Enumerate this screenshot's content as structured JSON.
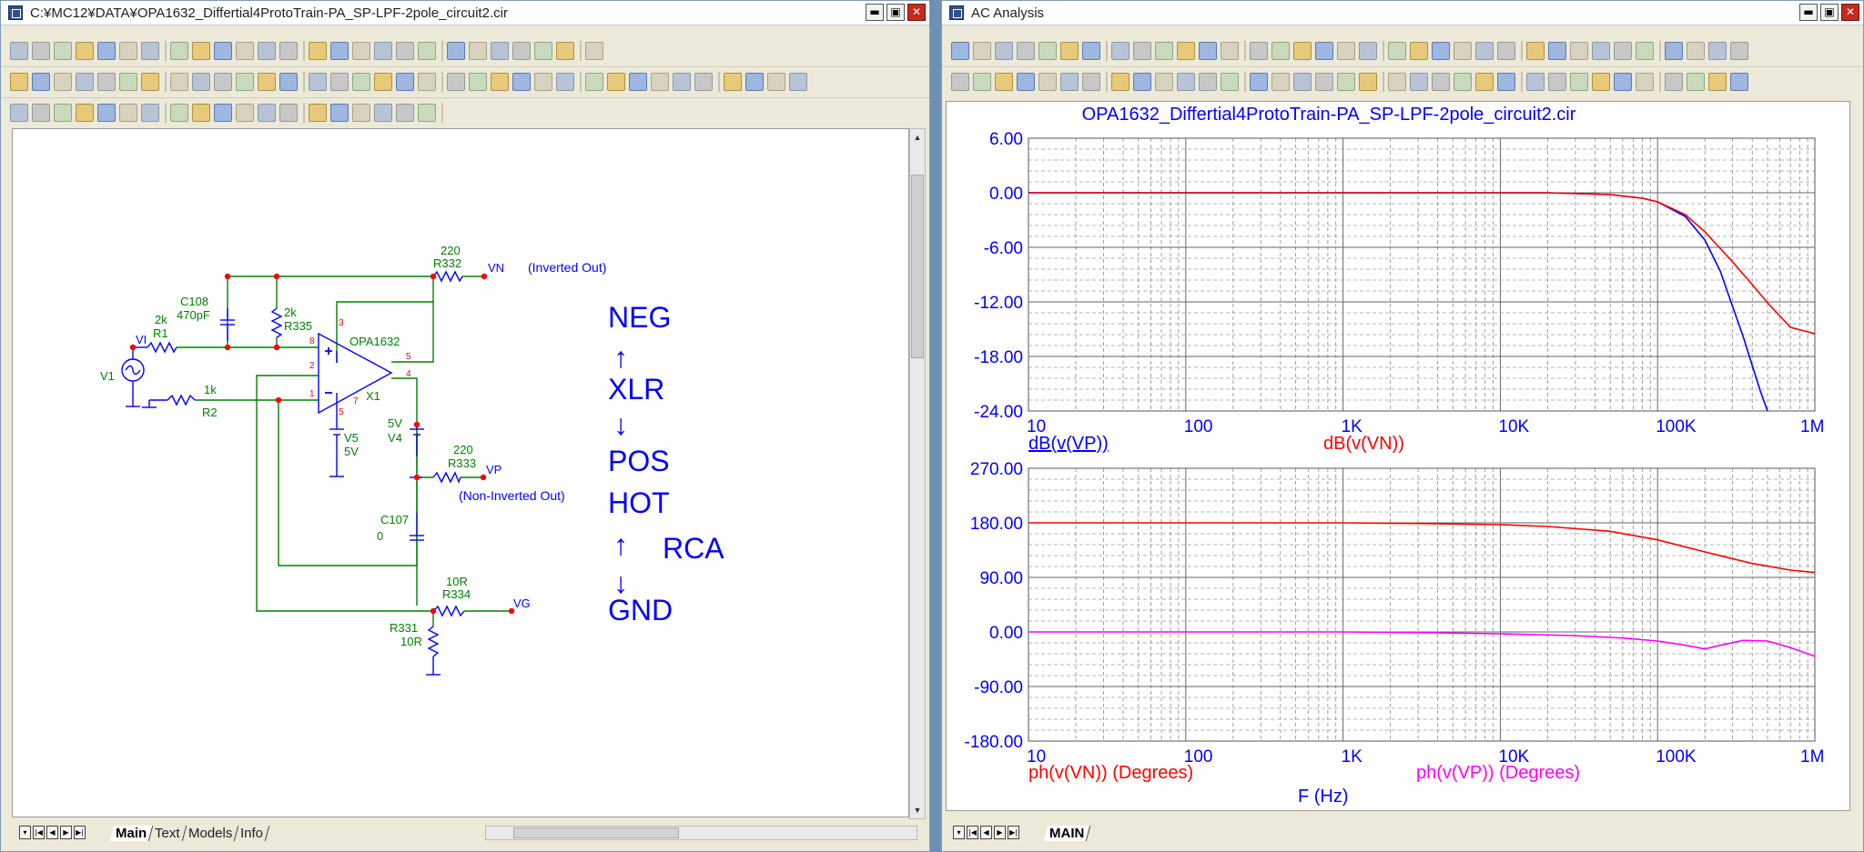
{
  "left_window": {
    "title": "C:¥MC12¥DATA¥OPA1632_Differtial4ProtoTrain-PA_SP-LPF-2pole_circuit2.cir",
    "tabs": [
      "Main",
      "Text",
      "Models",
      "Info"
    ],
    "active_tab": "Main"
  },
  "right_window": {
    "title": "AC Analysis",
    "tabs": [
      "MAIN"
    ],
    "active_tab": "MAIN"
  },
  "schematic": {
    "components": {
      "c108": {
        "name": "C108",
        "value": "470pF"
      },
      "r1": {
        "name": "R1",
        "value": "2k"
      },
      "r335": {
        "name": "R335",
        "value": "2k"
      },
      "r332": {
        "name": "R332",
        "value": "220"
      },
      "r2": {
        "name": "R2",
        "value": "1k"
      },
      "x1": {
        "name": "X1",
        "model": "OPA1632"
      },
      "v1": {
        "name": "V1"
      },
      "v4": {
        "name": "V4",
        "value": "5V"
      },
      "v5": {
        "name": "V5",
        "value": "5V"
      },
      "r333": {
        "name": "R333",
        "value": "220"
      },
      "c107": {
        "name": "C107",
        "value": "0"
      },
      "r334": {
        "name": "R334",
        "value": "10R"
      },
      "r331": {
        "name": "R331",
        "value": "10R"
      }
    },
    "nodes": {
      "vi": "VI",
      "vn": "VN",
      "vp": "VP",
      "vg": "VG"
    },
    "pins": [
      "3",
      "8",
      "2",
      "1",
      "5",
      "4",
      "7",
      "5"
    ],
    "annotations": {
      "inverted": "(Inverted Out)",
      "noninverted": "(Non-Inverted Out)"
    },
    "legend": {
      "neg": "NEG",
      "up_arrow": "↑",
      "xlr": "XLR",
      "down_arrow": "↓",
      "pos": "POS",
      "hot": "HOT",
      "up_arrow2": "↑",
      "rca": "RCA",
      "down_arrow2": "↓",
      "gnd": "GND"
    }
  },
  "colors": {
    "wire": "#008000",
    "component": "#0000ff",
    "node": "#ff0000",
    "label": "#008000",
    "trace_vp_db": "#0000ff",
    "trace_vn_db": "#ff0000",
    "trace_vn_ph": "#ff0000",
    "trace_vp_ph": "#ff00ff"
  },
  "chart_data": [
    {
      "type": "line",
      "title": "OPA1632_Differtial4ProtoTrain-PA_SP-LPF-2pole_circuit2.cir",
      "x_scale": "log",
      "xlim": [
        10,
        1000000
      ],
      "x_ticks": [
        "10",
        "100",
        "1K",
        "10K",
        "100K",
        "1M"
      ],
      "ylim": [
        -24,
        6
      ],
      "y_ticks": [
        "6.00",
        "0.00",
        "-6.00",
        "-12.00",
        "-18.00",
        "-24.00"
      ],
      "grid": true,
      "series": [
        {
          "name": "dB(v(VP))",
          "color": "#0000ff",
          "x": [
            10,
            1000,
            10000,
            20000,
            50000,
            80000,
            100000,
            150000,
            200000,
            250000,
            300000,
            350000,
            400000,
            450000,
            500000
          ],
          "y": [
            0,
            0,
            0,
            0,
            -0.2,
            -0.6,
            -1.0,
            -2.6,
            -5.2,
            -8.6,
            -12.5,
            -15.8,
            -19.0,
            -21.8,
            -24.0
          ]
        },
        {
          "name": "dB(v(VN))",
          "color": "#ff0000",
          "x": [
            10,
            1000,
            10000,
            20000,
            50000,
            80000,
            100000,
            150000,
            200000,
            300000,
            400000,
            500000,
            700000,
            1000000
          ],
          "y": [
            0,
            0,
            0,
            0,
            -0.2,
            -0.6,
            -1.0,
            -2.4,
            -4.3,
            -7.6,
            -10.1,
            -12.1,
            -14.8,
            -15.5
          ]
        }
      ]
    },
    {
      "type": "line",
      "x_scale": "log",
      "xlim": [
        10,
        1000000
      ],
      "x_ticks": [
        "10",
        "100",
        "1K",
        "10K",
        "100K",
        "1M"
      ],
      "xlabel": "F (Hz)",
      "ylim": [
        -180,
        270
      ],
      "y_ticks": [
        "270.00",
        "180.00",
        "90.00",
        "0.00",
        "-90.00",
        "-180.00"
      ],
      "grid": true,
      "series": [
        {
          "name": "ph(v(VN)) (Degrees)",
          "color": "#ff0000",
          "x": [
            10,
            1000,
            3000,
            10000,
            20000,
            50000,
            100000,
            200000,
            400000,
            700000,
            1000000
          ],
          "y": [
            180,
            180,
            179,
            177,
            174,
            166,
            152,
            132,
            113,
            102,
            98
          ]
        },
        {
          "name": "ph(v(VP)) (Degrees)",
          "color": "#ff00ff",
          "x": [
            10,
            1000,
            3000,
            10000,
            30000,
            60000,
            100000,
            150000,
            200000,
            250000,
            350000,
            500000,
            700000,
            1000000
          ],
          "y": [
            0,
            0,
            -1,
            -3,
            -6,
            -10,
            -15,
            -22,
            -28,
            -22,
            -14,
            -15,
            -26,
            -40
          ]
        }
      ]
    }
  ]
}
